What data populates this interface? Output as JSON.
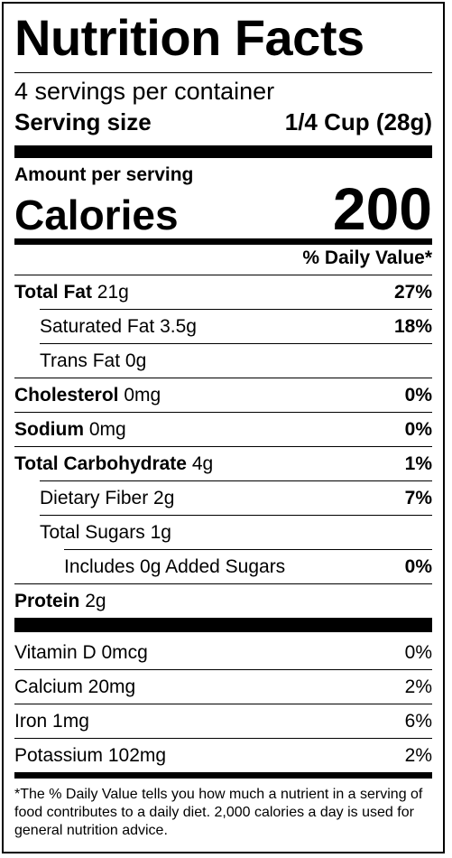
{
  "label": {
    "title": "Nutrition Facts",
    "servings_per_container": "4 servings per container",
    "serving_size_label": "Serving size",
    "serving_size_value": "1/4 Cup (28g)",
    "amount_per_serving": "Amount per serving",
    "calories_label": "Calories",
    "calories_value": "200",
    "daily_value_header": "% Daily Value*",
    "nutrients": [
      {
        "name": "Total Fat",
        "amount": "21g",
        "dv": "27%",
        "bold": true,
        "indent": 0
      },
      {
        "name": "Saturated Fat",
        "amount": "3.5g",
        "dv": "18%",
        "bold": false,
        "indent": 1
      },
      {
        "name": "Trans Fat",
        "amount": "0g",
        "dv": "",
        "bold": false,
        "indent": 1
      },
      {
        "name": "Cholesterol",
        "amount": "0mg",
        "dv": "0%",
        "bold": true,
        "indent": 0
      },
      {
        "name": "Sodium",
        "amount": "0mg",
        "dv": "0%",
        "bold": true,
        "indent": 0
      },
      {
        "name": "Total Carbohydrate",
        "amount": "4g",
        "dv": "1%",
        "bold": true,
        "indent": 0
      },
      {
        "name": "Dietary Fiber",
        "amount": "2g",
        "dv": "7%",
        "bold": false,
        "indent": 1
      },
      {
        "name": "Total Sugars",
        "amount": "1g",
        "dv": "",
        "bold": false,
        "indent": 1
      },
      {
        "name": "Includes 0g Added Sugars",
        "amount": "",
        "dv": "0%",
        "bold": false,
        "indent": 2
      },
      {
        "name": "Protein",
        "amount": "2g",
        "dv": "",
        "bold": true,
        "indent": 0
      }
    ],
    "vitamins": [
      {
        "name": "Vitamin D 0mcg",
        "dv": "0%"
      },
      {
        "name": "Calcium 20mg",
        "dv": "2%"
      },
      {
        "name": "Iron 1mg",
        "dv": "6%"
      },
      {
        "name": "Potassium 102mg",
        "dv": "2%"
      }
    ],
    "footnote": "*The % Daily Value tells you how much a nutrient in a serving of food contributes to a daily diet. 2,000 calories a day is used for general nutrition advice."
  }
}
